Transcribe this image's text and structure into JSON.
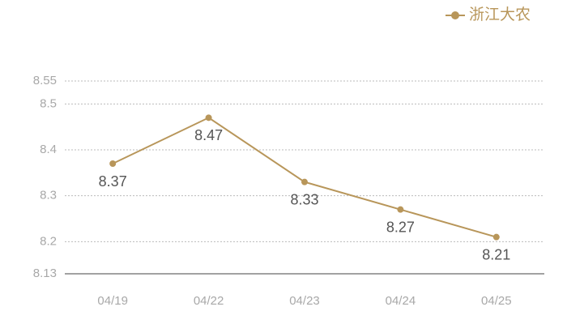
{
  "chart_data": {
    "type": "line",
    "categories": [
      "04/19",
      "04/22",
      "04/23",
      "04/24",
      "04/25"
    ],
    "series": [
      {
        "name": "浙江大农",
        "color": "#b8965a",
        "values": [
          8.37,
          8.47,
          8.33,
          8.27,
          8.21
        ]
      }
    ],
    "ylim": [
      8.13,
      8.55
    ],
    "yticks": [
      8.13,
      8.2,
      8.3,
      8.4,
      8.5,
      8.55
    ],
    "grid": true,
    "legend": "top-right"
  }
}
